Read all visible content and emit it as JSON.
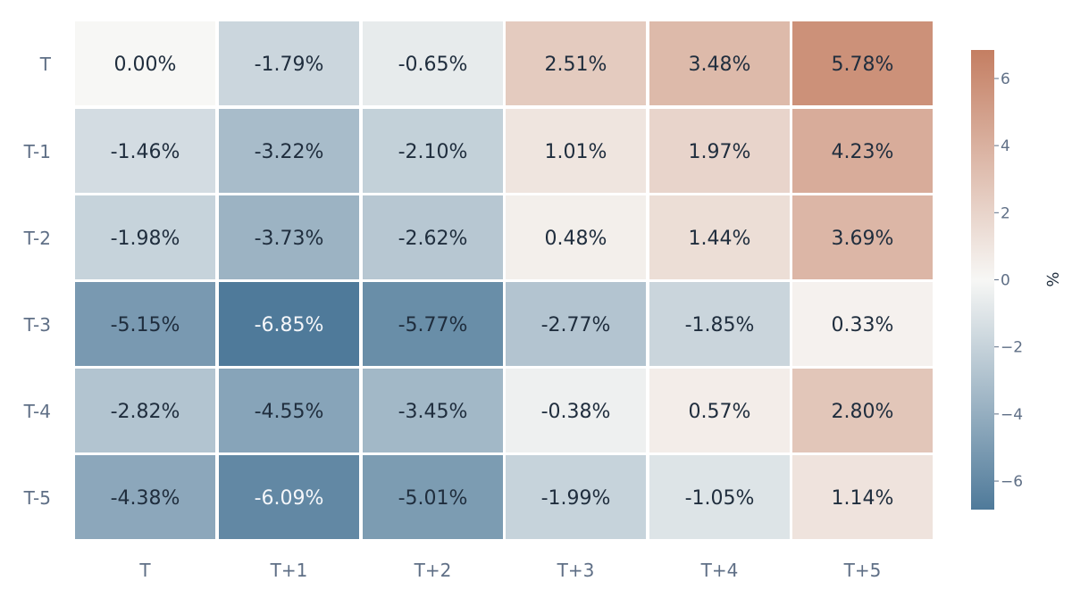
{
  "chart_data": {
    "type": "heatmap",
    "title": "",
    "xlabel": "",
    "ylabel": "",
    "x_categories": [
      "T",
      "T+1",
      "T+2",
      "T+3",
      "T+4",
      "T+5"
    ],
    "y_categories": [
      "T",
      "T-1",
      "T-2",
      "T-3",
      "T-4",
      "T-5"
    ],
    "values": [
      [
        0.0,
        -1.79,
        -0.65,
        2.51,
        3.48,
        5.78
      ],
      [
        -1.46,
        -3.22,
        -2.1,
        1.01,
        1.97,
        4.23
      ],
      [
        -1.98,
        -3.73,
        -2.62,
        0.48,
        1.44,
        3.69
      ],
      [
        -5.15,
        -6.85,
        -5.77,
        -2.77,
        -1.85,
        0.33
      ],
      [
        -2.82,
        -4.55,
        -3.45,
        -0.38,
        0.57,
        2.8
      ],
      [
        -4.38,
        -6.09,
        -5.01,
        -1.99,
        -1.05,
        1.14
      ]
    ],
    "cell_labels": [
      [
        "0.00%",
        "-1.79%",
        "-0.65%",
        "2.51%",
        "3.48%",
        "5.78%"
      ],
      [
        "-1.46%",
        "-3.22%",
        "-2.10%",
        "1.01%",
        "1.97%",
        "4.23%"
      ],
      [
        "-1.98%",
        "-3.73%",
        "-2.62%",
        "0.48%",
        "1.44%",
        "3.69%"
      ],
      [
        "-5.15%",
        "-6.85%",
        "-5.77%",
        "-2.77%",
        "-1.85%",
        "0.33%"
      ],
      [
        "-2.82%",
        "-4.55%",
        "-3.45%",
        "-0.38%",
        "0.57%",
        "2.80%"
      ],
      [
        "-4.38%",
        "-6.09%",
        "-5.01%",
        "-1.99%",
        "-1.05%",
        "1.14%"
      ]
    ],
    "colorbar": {
      "title": "%",
      "range": [
        -6.85,
        6.85
      ],
      "ticks": [
        -6,
        -4,
        -2,
        0,
        2,
        4,
        6
      ],
      "tick_labels": [
        "−6",
        "−4",
        "−2",
        "0",
        "2",
        "4",
        "6"
      ],
      "colors": {
        "negative": "#4f7a9a",
        "neutral": "#f7f7f5",
        "positive": "#c47e62"
      }
    },
    "grid": false,
    "legend": "right"
  },
  "colors": {
    "axis_text": "#5f6f86",
    "cell_text_dark": "#1f2d3d",
    "cell_text_light": "#f5f7fa",
    "background": "#ffffff",
    "gap": "#ffffff"
  }
}
